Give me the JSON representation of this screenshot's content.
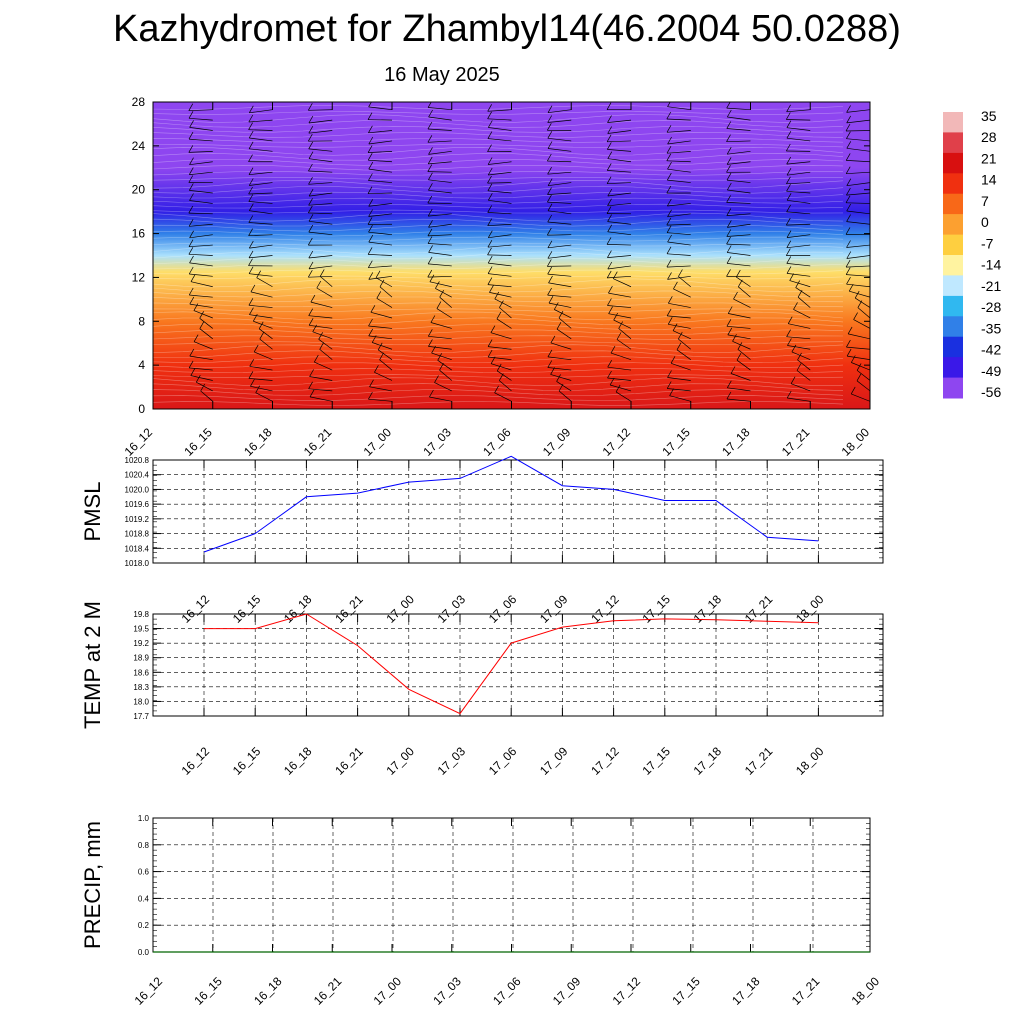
{
  "page": {
    "title": "Kazhydromet for Zhambyl14(46.2004 50.0288)",
    "subtitle": "16 May 2025"
  },
  "chart_data": [
    {
      "type": "heatmap",
      "name": "vertical temperature/wind cross-section",
      "x_tick_labels": [
        "16_12",
        "16_15",
        "16_18",
        "16_21",
        "17_00",
        "17_03",
        "17_06",
        "17_09",
        "17_12",
        "17_15",
        "17_18",
        "17_21",
        "18_00"
      ],
      "y_ticks": [
        0,
        4,
        8,
        12,
        16,
        20,
        24,
        28
      ],
      "ylim": [
        0,
        28
      ],
      "colorbar": {
        "labels": [
          "35",
          "28",
          "21",
          "14",
          "7",
          "0",
          "-7",
          "-14",
          "-21",
          "-28",
          "-35",
          "-42",
          "-49",
          "-56"
        ],
        "colors": [
          "#f2b8b8",
          "#e0404a",
          "#d81010",
          "#f03010",
          "#f86818",
          "#fca030",
          "#fecf40",
          "#fff3a0",
          "#bfe8ff",
          "#30b8f0",
          "#3080e8",
          "#1a30e0",
          "#3a18e8",
          "#8e46f0"
        ]
      },
      "temperature_profile_c": [
        {
          "level": 0,
          "temp": 22
        },
        {
          "level": 4,
          "temp": 14
        },
        {
          "level": 8,
          "temp": 5
        },
        {
          "level": 12.5,
          "temp": -10
        },
        {
          "level": 14,
          "temp": -22
        },
        {
          "level": 16,
          "temp": -35
        },
        {
          "level": 18,
          "temp": -47
        },
        {
          "level": 22,
          "temp": -58
        },
        {
          "level": 25,
          "temp": -56
        },
        {
          "level": 28,
          "temp": -60
        }
      ],
      "wind_barbs": "per level and time step"
    },
    {
      "type": "line",
      "ylabel": "PMSL",
      "x": [
        "16_12",
        "16_15",
        "16_18",
        "16_21",
        "17_00",
        "17_03",
        "17_06",
        "17_09",
        "17_12",
        "17_15",
        "17_18",
        "17_21",
        "18_00"
      ],
      "series": [
        {
          "values": [
            1018.3,
            1018.8,
            1019.8,
            1019.9,
            1020.2,
            1020.3,
            1020.9,
            1020.1,
            1020.0,
            1019.7,
            1019.7,
            1018.7,
            1018.6
          ],
          "color": "#0000ff"
        }
      ],
      "y_tick_labels": [
        "1018.0",
        "1018.4",
        "1018.8",
        "1019.2",
        "1019.6",
        "1020.0",
        "1020.4",
        "1020.8"
      ],
      "ylim": [
        1018.0,
        1020.8
      ]
    },
    {
      "type": "line",
      "ylabel": "TEMP at 2 M",
      "x": [
        "16_12",
        "16_15",
        "16_18",
        "16_21",
        "17_00",
        "17_03",
        "17_06",
        "17_09",
        "17_12",
        "17_15",
        "17_18",
        "17_21",
        "18_00"
      ],
      "series": [
        {
          "values": [
            19.5,
            19.5,
            19.8,
            19.15,
            18.25,
            17.75,
            19.2,
            19.53,
            19.66,
            19.7,
            19.68,
            19.65,
            19.62
          ],
          "color": "#ff0000"
        }
      ],
      "y_tick_labels": [
        "17.7",
        "18.0",
        "18.3",
        "18.6",
        "18.9",
        "19.2",
        "19.5",
        "19.8"
      ],
      "ylim": [
        17.7,
        19.8
      ]
    },
    {
      "type": "line",
      "ylabel": "PRECIP, mm",
      "x": [
        "16_12",
        "16_15",
        "16_18",
        "16_21",
        "17_00",
        "17_03",
        "17_06",
        "17_09",
        "17_12",
        "17_15",
        "17_18",
        "17_21",
        "18_00"
      ],
      "series": [
        {
          "values": [
            0,
            0,
            0,
            0,
            0,
            0,
            0,
            0,
            0,
            0,
            0,
            0,
            0
          ],
          "color": "#006400"
        }
      ],
      "y_tick_labels": [
        "0.0",
        "0.2",
        "0.4",
        "0.6",
        "0.8",
        "1.0"
      ],
      "ylim": [
        0,
        1.0
      ]
    }
  ]
}
